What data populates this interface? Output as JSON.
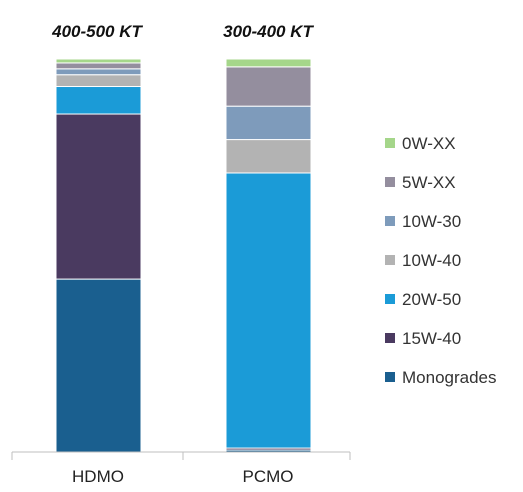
{
  "chart_data": {
    "type": "bar",
    "stacked": true,
    "normalized": true,
    "categories": [
      "HDMO",
      "PCMO"
    ],
    "top_labels": [
      "400-500 KT",
      "300-400 KT"
    ],
    "series": [
      {
        "name": "Monogrades",
        "color": "#1a5f8f",
        "values": [
          44,
          0.5
        ]
      },
      {
        "name": "15W-40",
        "color": "#4a3a60",
        "values": [
          42,
          0.5
        ]
      },
      {
        "name": "20W-50",
        "color": "#1b9bd7",
        "values": [
          7,
          70
        ]
      },
      {
        "name": "10W-40",
        "color": "#b3b3b3",
        "values": [
          3,
          8.5
        ]
      },
      {
        "name": "10W-30",
        "color": "#7e9bbb",
        "values": [
          1.5,
          8.5
        ]
      },
      {
        "name": "5W-XX",
        "color": "#948e9e",
        "values": [
          1.5,
          10
        ]
      },
      {
        "name": "0W-XX",
        "color": "#a5d68a",
        "values": [
          1,
          2
        ]
      }
    ],
    "legend_order": [
      "0W-XX",
      "5W-XX",
      "10W-30",
      "10W-40",
      "20W-50",
      "15W-40",
      "Monogrades"
    ],
    "legend_position": "right",
    "ylim": [
      0,
      100
    ],
    "grid": false
  }
}
